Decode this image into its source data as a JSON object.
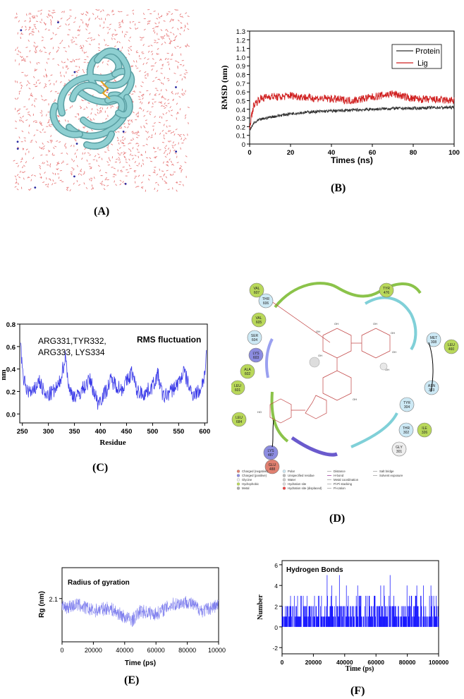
{
  "captions": {
    "a": "(A)",
    "b": "(B)",
    "c": "(C)",
    "d": "(D)",
    "e": "(E)",
    "f": "(F)"
  },
  "colors": {
    "protein": "#303030",
    "lig": "#d02020",
    "blue_trace": "#3a3ae8",
    "rg_trace": "#8080ee",
    "hbond": "#0000ff",
    "water": "#e87c7c",
    "ribbon": "#8ecfd1"
  },
  "interaction_map": {
    "residues": [
      "VAL 607",
      "THR 606",
      "VAL 605",
      "SER 604",
      "LYS 603",
      "ALA 602",
      "LEU 601",
      "LEU 684",
      "LYS 487",
      "GLU 488",
      "TYR 476",
      "MET 308",
      "LEU 460",
      "ASN 303",
      "TYR 304",
      "THR 302",
      "ILE 326",
      "GLY 301"
    ],
    "legend": [
      "Charged (negative)",
      "Charged (positive)",
      "Glycine",
      "Hydrophobic",
      "Metal",
      "Polar",
      "Unspecified residue",
      "Water",
      "Hydration site",
      "Hydration site (displaced)",
      "Distance",
      "H-bond",
      "Metal coordination",
      "Pi-Pi stacking",
      "Pi-cation",
      "Salt bridge",
      "Solvent exposure"
    ]
  },
  "chart_data": [
    {
      "type": "line",
      "id": "rmsd",
      "xlabel": "Times (ns)",
      "ylabel": "RMSD (nm)",
      "xlim": [
        0,
        100
      ],
      "ylim": [
        0,
        1.3
      ],
      "xticks": [
        "0",
        "20",
        "40",
        "60",
        "80",
        "100"
      ],
      "yticks": [
        "0",
        "0.1",
        "0.2",
        "0.3",
        "0.4",
        "0.5",
        "0.6",
        "0.7",
        "0.8",
        "0.9",
        "1.0",
        "1.1",
        "1.2",
        "1.3"
      ],
      "legend_position": "top-right",
      "series": [
        {
          "name": "Protein",
          "x": [
            0,
            2,
            5,
            10,
            15,
            20,
            30,
            40,
            50,
            60,
            70,
            80,
            90,
            100
          ],
          "values": [
            0.15,
            0.24,
            0.28,
            0.31,
            0.33,
            0.35,
            0.37,
            0.38,
            0.39,
            0.4,
            0.41,
            0.41,
            0.42,
            0.42
          ]
        },
        {
          "name": "Lig",
          "x": [
            0,
            2,
            5,
            10,
            15,
            20,
            30,
            40,
            50,
            60,
            70,
            80,
            90,
            100
          ],
          "values": [
            0.2,
            0.45,
            0.52,
            0.55,
            0.54,
            0.56,
            0.53,
            0.52,
            0.5,
            0.54,
            0.58,
            0.52,
            0.51,
            0.5
          ]
        }
      ]
    },
    {
      "type": "line",
      "id": "rmsf",
      "title": "RMS fluctuation",
      "annotation": [
        "ARG331,TYR332,",
        "ARG333, LYS334"
      ],
      "xlabel": "Residue",
      "ylabel": "nm",
      "xlim": [
        245,
        605
      ],
      "ylim": [
        -0.08,
        0.8
      ],
      "xticks": [
        "250",
        "300",
        "350",
        "400",
        "450",
        "500",
        "550",
        "600"
      ],
      "yticks": [
        "0.0",
        "0.2",
        "0.4",
        "0.6",
        "0.8"
      ],
      "series": [
        {
          "x": [
            247,
            250,
            258,
            270,
            282,
            295,
            310,
            320,
            330,
            333,
            340,
            355,
            365,
            380,
            395,
            410,
            420,
            440,
            455,
            460,
            470,
            485,
            500,
            510,
            520,
            535,
            550,
            560,
            575,
            590,
            600,
            604
          ],
          "values": [
            0.65,
            0.35,
            0.22,
            0.18,
            0.3,
            0.15,
            0.2,
            0.25,
            0.45,
            0.52,
            0.2,
            0.15,
            0.22,
            0.3,
            0.1,
            0.2,
            0.3,
            0.22,
            0.32,
            0.38,
            0.2,
            0.18,
            0.25,
            0.35,
            0.15,
            0.2,
            0.28,
            0.38,
            0.18,
            0.2,
            0.35,
            0.6
          ]
        }
      ]
    },
    {
      "type": "line",
      "id": "rg",
      "title": "Radius of gyration",
      "xlabel": "Time (ps)",
      "ylabel": "Rg (nm)",
      "xlim": [
        0,
        100000
      ],
      "ylim": [
        1.96,
        2.2
      ],
      "xticks": [
        "0",
        "20000",
        "40000",
        "60000",
        "80000",
        "100000"
      ],
      "yticks": [
        "2.1"
      ],
      "series": [
        {
          "x": [
            0,
            10000,
            20000,
            30000,
            40000,
            45000,
            50000,
            60000,
            70000,
            80000,
            90000,
            100000
          ],
          "values": [
            2.07,
            2.08,
            2.06,
            2.07,
            2.04,
            2.03,
            2.06,
            2.05,
            2.08,
            2.09,
            2.06,
            2.08
          ]
        }
      ]
    },
    {
      "type": "bar",
      "id": "hbonds",
      "title": "Hydrogen Bonds",
      "xlabel": "Time (ps)",
      "ylabel": "Number",
      "xlim": [
        0,
        100000
      ],
      "ylim": [
        -2.6,
        6.4
      ],
      "xticks": [
        "0",
        "20000",
        "40000",
        "60000",
        "80000",
        "100000"
      ],
      "yticks": [
        "-2",
        "0",
        "2",
        "4",
        "6"
      ],
      "typical_range": [
        0,
        3
      ],
      "max_value": 5
    }
  ]
}
